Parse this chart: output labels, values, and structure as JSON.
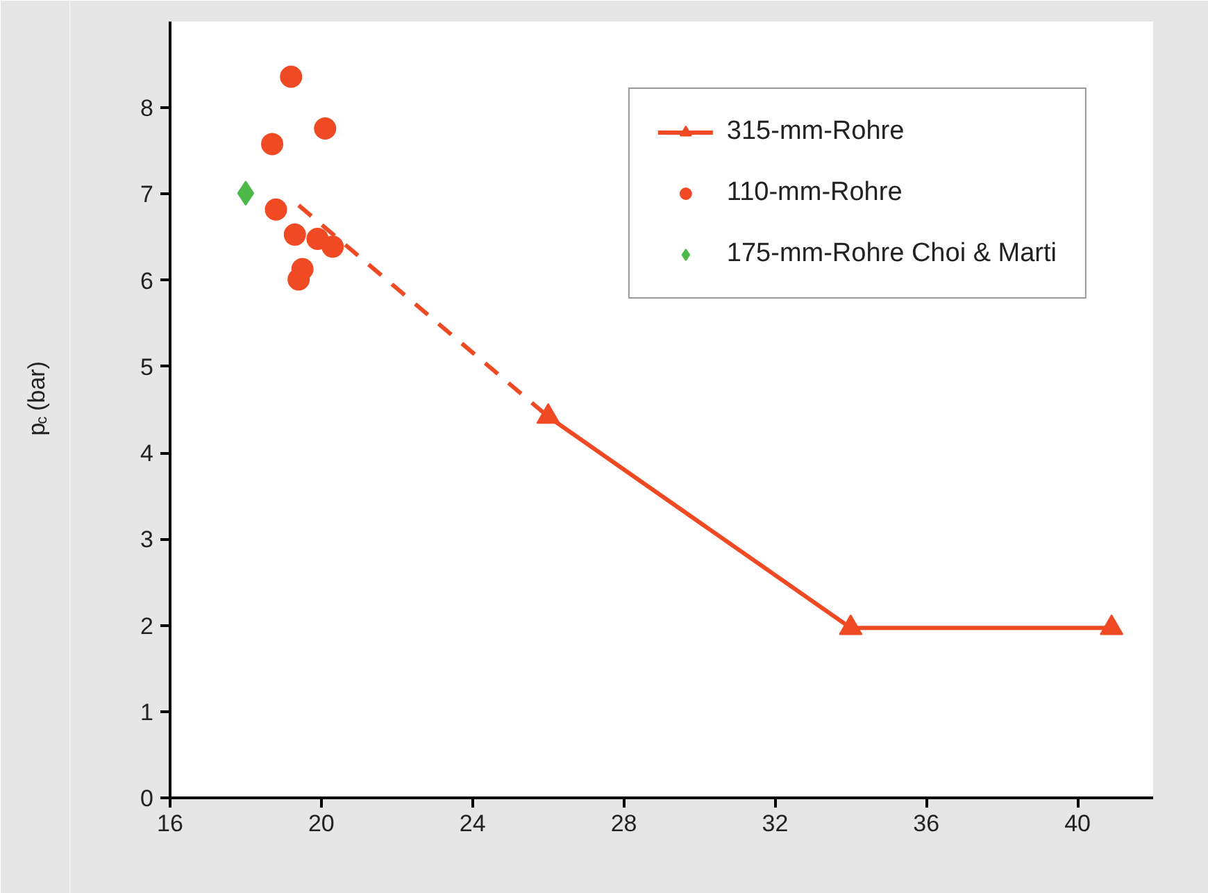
{
  "chart_data": {
    "type": "scatter",
    "ylabel": "p$_{c}$ (bar)",
    "xlim": [
      16,
      42
    ],
    "xticks": [
      16,
      20,
      24,
      28,
      32,
      36,
      40
    ],
    "ylim": [
      0,
      9
    ],
    "yticks": [
      0,
      1,
      2,
      3,
      4,
      5,
      6,
      7,
      8
    ],
    "grid": false,
    "legend": "top right",
    "series": [
      {
        "name": "315-mm-Rohre",
        "type": "line",
        "marker": "triangle",
        "line_style": "solid",
        "color": "#ef4a24",
        "x": [
          26.0,
          34.0,
          40.9
        ],
        "values": [
          4.42,
          1.97,
          1.97
        ]
      },
      {
        "type": "line",
        "marker": "none",
        "line_style": "dashed",
        "color": "#ef4a24",
        "x": [
          19.4,
          26.0
        ],
        "values": [
          6.87,
          4.42
        ]
      },
      {
        "name": "110-mm-Rohre",
        "type": "scatter",
        "marker": "circle",
        "color": "#ef4a24",
        "x": [
          19.2,
          18.7,
          20.1,
          18.8,
          19.3,
          19.9,
          20.3,
          19.5,
          19.4
        ],
        "values": [
          8.36,
          7.58,
          7.76,
          6.82,
          6.53,
          6.48,
          6.39,
          6.13,
          6.01
        ]
      },
      {
        "name": "175-mm-Rohre Choi & Marti",
        "type": "scatter",
        "marker": "diamond",
        "color": "#4cb84a",
        "x": [
          18.0
        ],
        "values": [
          7.01
        ]
      }
    ]
  }
}
